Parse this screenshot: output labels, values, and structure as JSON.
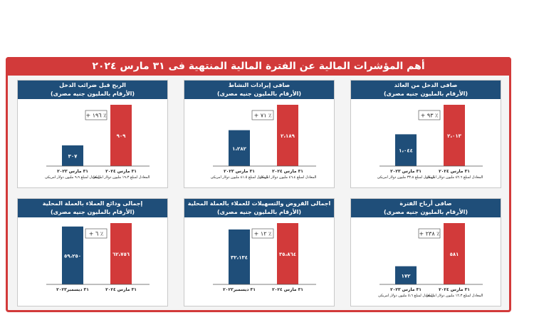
{
  "banner": "أهم المؤشرات المالية عن الفترة المالية المنتهية فى ٣١ مارس ٢٠٢٤",
  "colors": {
    "red": "#d23a3a",
    "blue": "#1f4e79"
  },
  "unit_note": "(الأرقام بالمليون جنيه مصرى)",
  "chart_data": [
    {
      "type": "bar",
      "title": "صافى الدخل من العائد",
      "subtitle": "(الأرقام بالمليون جنيه مصرى)",
      "categories": [
        "٣١ مارس ٢٠٢٤",
        "٣١ مارس ٢٠٢٣"
      ],
      "values": [
        2013,
        1044
      ],
      "value_labels": [
        "٢،٠١٣",
        "١،٠٤٤"
      ],
      "growth": "+ ٩٣ ٪",
      "notes": [
        "المعادل لمبلغ ٤٢،٦ مليون دولار امريكى",
        "المعادل لمبلغ ٣٣،٨ مليون دولار امريكى"
      ]
    },
    {
      "type": "bar",
      "title": "صافى إيرادات النشاط",
      "subtitle": "(الأرقام بالمليون جنيه مصرى)",
      "categories": [
        "٣١ مارس ٢٠٢٤",
        "٣١ مارس ٢٠٢٣"
      ],
      "values": [
        2189,
        1282
      ],
      "value_labels": [
        "٢،١٨٩",
        "١،٢٨٢"
      ],
      "growth": "+ ٧١ ٪",
      "notes": [
        "المعادل لمبلغ ٤٦،٤ مليون دولار امريكى",
        "المعادل لمبلغ ٤١،٥ مليون دولار امريكى"
      ]
    },
    {
      "type": "bar",
      "title": "الربح قبل ضرائب الدخل",
      "subtitle": "(الأرقام بالمليون جنيه مصرى)",
      "categories": [
        "٣١ مارس ٢٠٢٤",
        "٣١ مارس ٢٠٢٣"
      ],
      "values": [
        909,
        307
      ],
      "value_labels": [
        "٩٠٩",
        "٣٠٧"
      ],
      "growth": "+ ١٩٦ ٪",
      "notes": [
        "المعادل لمبلغ ١٩،٣ مليون دولار امريكى",
        "المعادل لمبلغ ٩،٩ مليون دولار امريكى"
      ]
    },
    {
      "type": "bar",
      "title": "صافى أرباح الفترة",
      "subtitle": "(الأرقام بالمليون جنيه مصرى)",
      "categories": [
        "٣١ مارس ٢٠٢٤",
        "٣١ مارس ٢٠٢٣"
      ],
      "values": [
        581,
        172
      ],
      "value_labels": [
        "٥٨١",
        "١٧٢"
      ],
      "growth": "+ ٢٣٨ ٪",
      "notes": [
        "المعادل لمبلغ ١٢،٣ مليون دولار امريكى",
        "المعادل لمبلغ ٥،٦ مليون دولار امريكى"
      ]
    },
    {
      "type": "bar",
      "title": "اجمالى القروض والتسهيلات للعملاء بالعملة المحلية",
      "subtitle": "(الأرقام بالمليون جنيه مصرى)",
      "categories": [
        "٣١ مارس ٢٠٢٤",
        "٣١ ديسمبر٢٠٢٣"
      ],
      "values": [
        35864,
        32134
      ],
      "value_labels": [
        "٣٥،٨٦٤",
        "٣٢،١٣٤"
      ],
      "growth": "+ ١٢ ٪",
      "notes": []
    },
    {
      "type": "bar",
      "title": "إجمالى ودائع العملاء بالعملة المحلية",
      "subtitle": "(الأرقام بالمليون جنيه مصرى)",
      "categories": [
        "٣١ مارس ٢٠٢٤",
        "٣١ ديسمبر٢٠٢٣"
      ],
      "values": [
        62756,
        59250
      ],
      "value_labels": [
        "٦٢،٧٥٦",
        "٥٩،٢٥٠"
      ],
      "growth": "+ ٦ ٪",
      "notes": []
    }
  ]
}
